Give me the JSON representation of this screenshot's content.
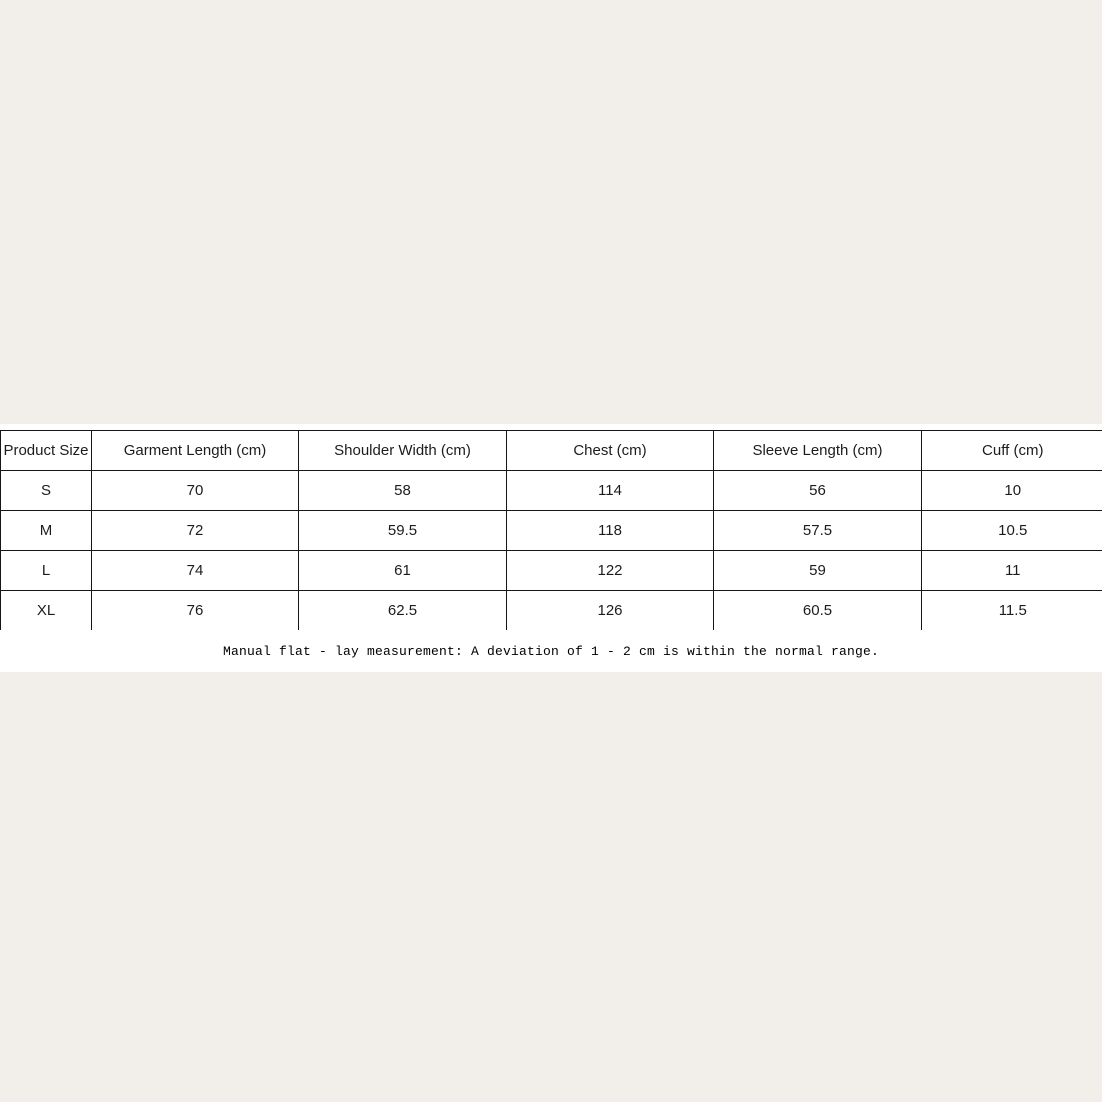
{
  "page": {
    "background_color": "#f2eee9",
    "panel_color": "#ffffff",
    "border_color": "#151515",
    "text_color": "#1c1c1c"
  },
  "size_chart": {
    "columns": [
      "Product Size",
      "Garment Length (cm)",
      "Shoulder Width (cm)",
      "Chest (cm)",
      "Sleeve Length (cm)",
      "Cuff (cm)"
    ],
    "rows": [
      {
        "cells": [
          "S",
          "70",
          "58",
          "114",
          "56",
          "10"
        ]
      },
      {
        "cells": [
          "M",
          "72",
          "59.5",
          "118",
          "57.5",
          "10.5"
        ]
      },
      {
        "cells": [
          "L",
          "74",
          "61",
          "122",
          "59",
          "11"
        ]
      },
      {
        "cells": [
          "XL",
          "76",
          "62.5",
          "126",
          "60.5",
          "11.5"
        ]
      }
    ],
    "note": "Manual flat - lay measurement: A deviation of 1 - 2 cm is within the normal range."
  },
  "chart_data": {
    "type": "table",
    "columns": [
      "Product Size",
      "Garment Length (cm)",
      "Shoulder Width (cm)",
      "Chest (cm)",
      "Sleeve Length (cm)",
      "Cuff (cm)"
    ],
    "rows": [
      [
        "S",
        70,
        58,
        114,
        56,
        10
      ],
      [
        "M",
        72,
        59.5,
        118,
        57.5,
        10.5
      ],
      [
        "L",
        74,
        61,
        122,
        59,
        11
      ],
      [
        "XL",
        76,
        62.5,
        126,
        60.5,
        11.5
      ]
    ],
    "note": "Manual flat - lay measurement: A deviation of 1 - 2 cm is within the normal range."
  }
}
